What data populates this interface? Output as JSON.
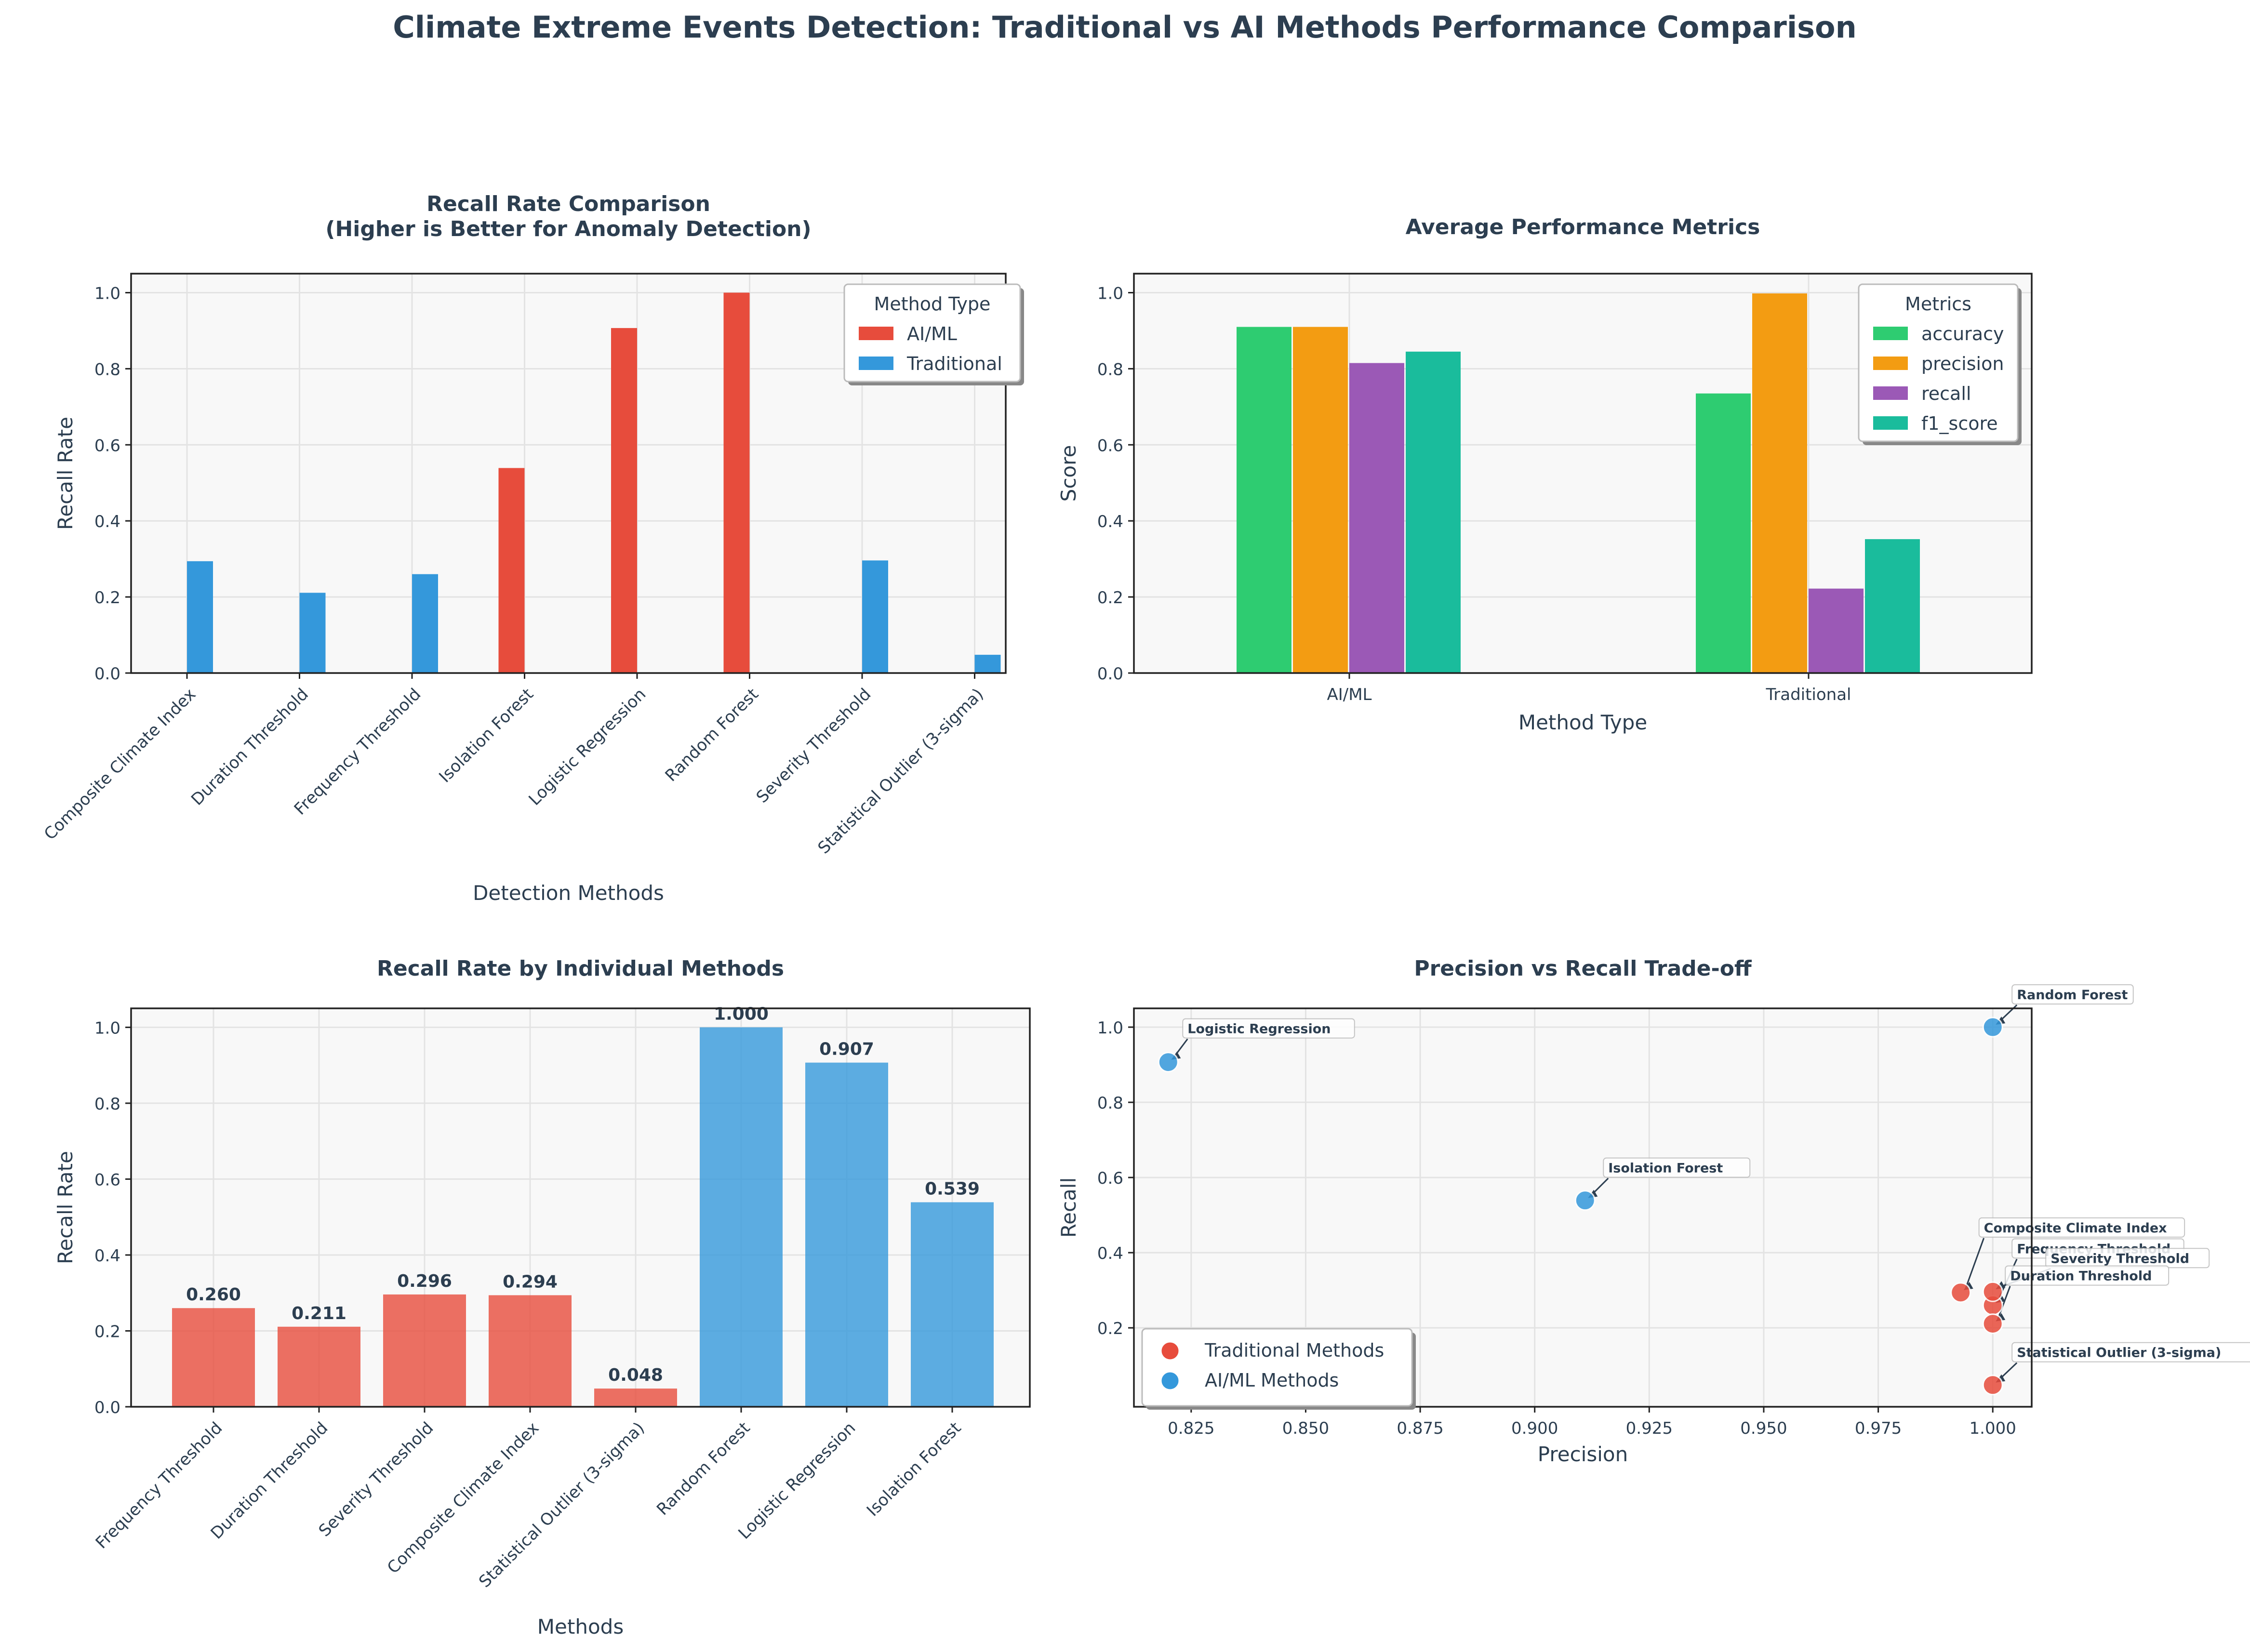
{
  "figure_title": "Climate Extreme Events Detection: Traditional vs AI Methods Performance Comparison",
  "colors": {
    "ai": "#e74c3c",
    "traditional": "#3498db",
    "accuracy": "#2ecc71",
    "precision": "#f39c12",
    "recall": "#9b59b6",
    "f1_score": "#1abc9c",
    "text": "#2c3e50",
    "plot_bg": "#f8f8f8"
  },
  "chart_data": [
    {
      "type": "bar",
      "title": "Recall Rate Comparison\n(Higher is Better for Anomaly Detection)",
      "xlabel": "Detection Methods",
      "ylabel": "Recall Rate",
      "ylim": [
        0,
        1.05
      ],
      "yticks": [
        "0.0",
        "0.2",
        "0.4",
        "0.6",
        "0.8",
        "1.0"
      ],
      "grid": true,
      "legend_title": "Method Type",
      "legend_position": "top-right",
      "categories": [
        "Composite Climate Index",
        "Duration Threshold",
        "Frequency Threshold",
        "Isolation Forest",
        "Logistic Regression",
        "Random Forest",
        "Severity Threshold",
        "Statistical Outlier (3-sigma)"
      ],
      "series": [
        {
          "name": "AI/ML",
          "color_key": "ai",
          "values": [
            null,
            null,
            null,
            0.539,
            0.907,
            1.0,
            null,
            null
          ]
        },
        {
          "name": "Traditional",
          "color_key": "traditional",
          "values": [
            0.294,
            0.211,
            0.26,
            null,
            null,
            null,
            0.296,
            0.048
          ]
        }
      ]
    },
    {
      "type": "bar",
      "title": "Average Performance Metrics",
      "xlabel": "Method Type",
      "ylabel": "Score",
      "ylim": [
        0,
        1.05
      ],
      "yticks": [
        "0.0",
        "0.2",
        "0.4",
        "0.6",
        "0.8",
        "1.0"
      ],
      "grid": true,
      "legend_title": "Metrics",
      "legend_position": "top-right",
      "categories": [
        "AI/ML",
        "Traditional"
      ],
      "series": [
        {
          "name": "accuracy",
          "color_key": "accuracy",
          "values": [
            0.91,
            0.735
          ]
        },
        {
          "name": "precision",
          "color_key": "precision",
          "values": [
            0.91,
            0.998
          ]
        },
        {
          "name": "recall",
          "color_key": "recall",
          "values": [
            0.815,
            0.222
          ]
        },
        {
          "name": "f1_score",
          "color_key": "f1_score",
          "values": [
            0.845,
            0.352
          ]
        }
      ]
    },
    {
      "type": "bar",
      "title": "Recall Rate by Individual Methods",
      "xlabel": "Methods",
      "ylabel": "Recall Rate",
      "ylim": [
        0,
        1.05
      ],
      "yticks": [
        "0.0",
        "0.2",
        "0.4",
        "0.6",
        "0.8",
        "1.0"
      ],
      "grid": true,
      "categories": [
        "Frequency Threshold",
        "Duration Threshold",
        "Severity Threshold",
        "Composite Climate Index",
        "Statistical Outlier (3-sigma)",
        "Random Forest",
        "Logistic Regression",
        "Isolation Forest"
      ],
      "values": [
        0.26,
        0.211,
        0.296,
        0.294,
        0.048,
        1.0,
        0.907,
        0.539
      ],
      "data_labels": [
        "0.260",
        "0.211",
        "0.296",
        "0.294",
        "0.048",
        "1.000",
        "0.907",
        "0.539"
      ],
      "bar_groups": [
        "traditional",
        "traditional",
        "traditional",
        "traditional",
        "traditional",
        "ai",
        "ai",
        "ai"
      ]
    },
    {
      "type": "scatter",
      "title": "Precision vs Recall Trade-off",
      "xlabel": "Precision",
      "ylabel": "Recall",
      "xlim": [
        0.8125,
        1.0085
      ],
      "ylim": [
        -0.01,
        1.05
      ],
      "xticks": [
        "0.825",
        "0.850",
        "0.875",
        "0.900",
        "0.925",
        "0.950",
        "0.975",
        "1.000"
      ],
      "yticks": [
        "0.2",
        "0.4",
        "0.6",
        "0.8",
        "1.0"
      ],
      "grid": true,
      "legend_position": "bottom-left",
      "series": [
        {
          "name": "Traditional Methods",
          "color_key": "traditional_scatter",
          "color": "#e74c3c",
          "points": [
            {
              "label": "Composite Climate Index",
              "x": 0.993,
              "y": 0.294
            },
            {
              "label": "Frequency Threshold",
              "x": 1.0,
              "y": 0.26
            },
            {
              "label": "Severity Threshold",
              "x": 1.0,
              "y": 0.296
            },
            {
              "label": "Duration Threshold",
              "x": 1.0,
              "y": 0.211
            },
            {
              "label": "Statistical Outlier (3-sigma)",
              "x": 1.0,
              "y": 0.048
            }
          ]
        },
        {
          "name": "AI/ML Methods",
          "color_key": "ai_scatter",
          "color": "#3498db",
          "points": [
            {
              "label": "Logistic Regression",
              "x": 0.82,
              "y": 0.907
            },
            {
              "label": "Random Forest",
              "x": 1.0,
              "y": 1.0
            },
            {
              "label": "Isolation Forest",
              "x": 0.911,
              "y": 0.539
            }
          ]
        }
      ]
    }
  ]
}
